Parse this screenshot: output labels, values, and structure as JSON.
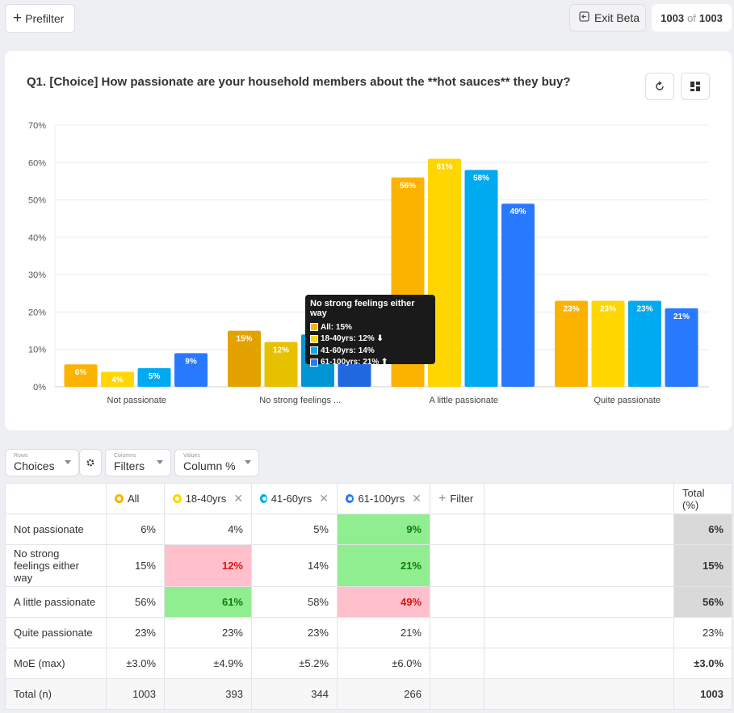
{
  "topbar": {
    "prefilter_label": "Prefilter",
    "exit_label": "Exit Beta",
    "count_current": "1003",
    "count_of": "of",
    "count_total": "1003"
  },
  "question": {
    "title": "Q1. [Choice] How passionate are your household members about the **hot sauces** they buy?"
  },
  "colors": {
    "all": "#fbb300",
    "age18_40": "#ffd600",
    "age41_60": "#00aaf0",
    "age61_100": "#2979ff"
  },
  "chart_data": {
    "type": "bar",
    "categories": [
      "Not passionate",
      "No strong feelings ...",
      "A little passionate",
      "Quite passionate"
    ],
    "series": [
      {
        "name": "All",
        "values": [
          6,
          15,
          56,
          23
        ]
      },
      {
        "name": "18-40yrs",
        "values": [
          4,
          12,
          61,
          23
        ]
      },
      {
        "name": "41-60yrs",
        "values": [
          5,
          14,
          58,
          23
        ]
      },
      {
        "name": "61-100yrs",
        "values": [
          9,
          21,
          49,
          21
        ]
      }
    ],
    "ylim": [
      0,
      70
    ],
    "yticks": [
      0,
      10,
      20,
      30,
      40,
      50,
      60,
      70
    ],
    "ytick_suffix": "%",
    "value_suffix": "%",
    "grid": true
  },
  "tooltip": {
    "title": "No strong feelings either way",
    "rows": [
      "All: 15%",
      "18-40yrs: 12% ⬇",
      "41-60yrs: 14%",
      "61-100yrs: 21% ⬆"
    ]
  },
  "controls": {
    "rows_small": "Rows",
    "rows_value": "Choices",
    "cols_small": "Columns",
    "cols_value": "Filters",
    "vals_small": "Values",
    "vals_value": "Column %"
  },
  "table": {
    "headers": [
      "All",
      "18-40yrs",
      "41-60yrs",
      "61-100yrs"
    ],
    "add_filter": "Filter",
    "total_header": "Total (%)",
    "rows": [
      {
        "label": "Not passionate",
        "cells": [
          "6%",
          "4%",
          "5%",
          "9%"
        ],
        "total": "6%"
      },
      {
        "label": "No strong feelings either way",
        "cells": [
          "15%",
          "12%",
          "14%",
          "21%"
        ],
        "total": "15%"
      },
      {
        "label": "A little passionate",
        "cells": [
          "56%",
          "61%",
          "58%",
          "49%"
        ],
        "total": "56%"
      },
      {
        "label": "Quite passionate",
        "cells": [
          "23%",
          "23%",
          "23%",
          "21%"
        ],
        "total": "23%"
      },
      {
        "label": "MoE (max)",
        "cells": [
          "±3.0%",
          "±4.9%",
          "±5.2%",
          "±6.0%"
        ],
        "total": "±3.0%"
      },
      {
        "label": "Total (n)",
        "cells": [
          "1003",
          "393",
          "344",
          "266"
        ],
        "total": "1003"
      }
    ]
  }
}
